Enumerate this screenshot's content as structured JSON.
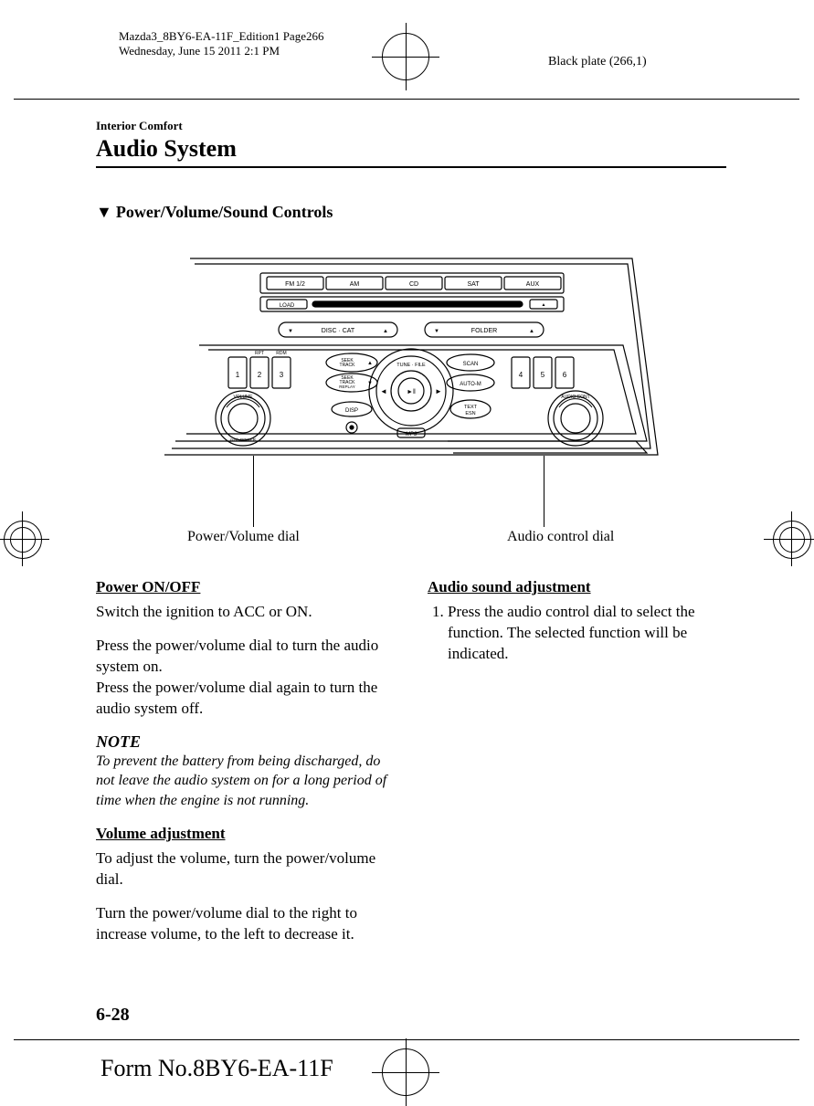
{
  "header": {
    "meta_line1": "Mazda3_8BY6-EA-11F_Edition1 Page266",
    "meta_line2": "Wednesday, June 15 2011 2:1 PM",
    "plate": "Black plate (266,1)"
  },
  "section": {
    "tag": "Interior Comfort",
    "title": "Audio System",
    "sub_heading": "Power/Volume/Sound Controls"
  },
  "diagram": {
    "buttons_row1": [
      "FM 1/2",
      "AM",
      "CD",
      "SAT",
      "AUX"
    ],
    "load_label": "LOAD",
    "eject_symbol": "▲",
    "disc_cat_label": "DISC · CAT",
    "folder_label": "FOLDER",
    "presets_left_top": [
      "RPT",
      "RDM"
    ],
    "presets_left": [
      "1",
      "2",
      "3"
    ],
    "presets_right": [
      "4",
      "5",
      "6"
    ],
    "seek_up": "SEEK\nTRACK",
    "seek_down": "SEEK\nTRACK\nREPLAY",
    "scan": "SCAN",
    "auto_m": "AUTO-M",
    "disp": "DISP",
    "text_esn": "TEXT\nESN",
    "tune_file": "TUNE · FILE",
    "volume_label": "VOLUME",
    "push_power": "push POWER",
    "audio_cont": "AUDIO CONT",
    "mp3": "MP3",
    "callout_left": "Power/Volume dial",
    "callout_right": "Audio control dial"
  },
  "left_col": {
    "h1": "Power ON/OFF",
    "p1": "Switch the ignition to ACC or ON.",
    "p2": "Press the power/volume dial to turn the audio system on.",
    "p3": "Press the power/volume dial again to turn the audio system off.",
    "note_title": "NOTE",
    "note_body": "To prevent the battery from being discharged, do not leave the audio system on for a long period of time when the engine is not running.",
    "h2": "Volume adjustment",
    "p4": "To adjust the volume, turn the power/volume dial.",
    "p5": "Turn the power/volume dial to the right to increase volume, to the left to decrease it."
  },
  "right_col": {
    "h1": "Audio sound adjustment",
    "li1": "Press the audio control dial to select the function. The selected function will be indicated."
  },
  "footer": {
    "page_number": "6-28",
    "form_no": "Form No.8BY6-EA-11F"
  }
}
